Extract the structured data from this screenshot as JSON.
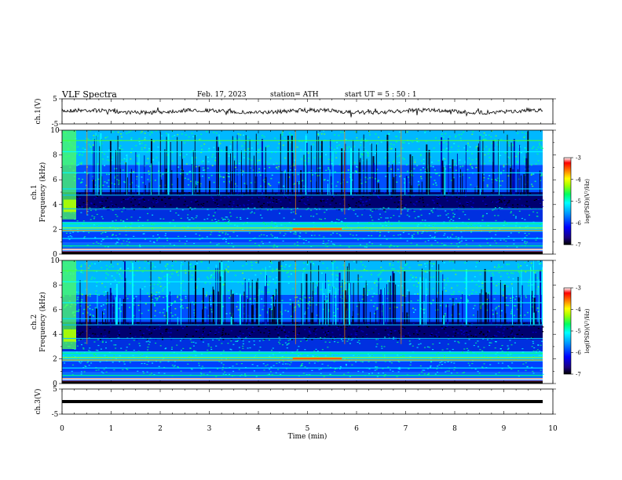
{
  "header": {
    "title": "VLF  Spectra",
    "date": "Feb. 17, 2023",
    "station": "station= ATH",
    "start": "start  UT  =   5  : 50 : 1"
  },
  "colors": {
    "spectrum": [
      "#000000",
      "#0b0b8a",
      "#0000ff",
      "#0088ff",
      "#00ffff",
      "#00ff88",
      "#88ff00",
      "#ffff00",
      "#ff8800",
      "#ff0000",
      "#ffffff"
    ]
  },
  "chart_data": [
    {
      "type": "line",
      "name": "ch1-waveform",
      "ylabel": "ch.1(V)",
      "yticks": [
        "5",
        "-5"
      ],
      "ylim": [
        -5,
        5
      ],
      "xlim": [
        0,
        10
      ]
    },
    {
      "type": "heatmap",
      "name": "ch1-spectrogram",
      "ylabel": "ch.1\nFrequency (kHz)",
      "ylabel_line1": "ch.1",
      "ylabel_line2": "Frequency  (kHz)",
      "yticks": [
        "10",
        "8",
        "6",
        "4",
        "2",
        "0"
      ],
      "ylim": [
        0,
        10
      ],
      "xlim": [
        0,
        10
      ],
      "colorbar": {
        "label": "log(PSD)(V²/Hz)",
        "ticks": [
          "-3",
          "-4",
          "-5",
          "-6",
          "-7"
        ],
        "range": [
          -7,
          -3
        ]
      }
    },
    {
      "type": "heatmap",
      "name": "ch2-spectrogram",
      "ylabel_line1": "ch.2",
      "ylabel_line2": "Frequency  (kHz)",
      "yticks": [
        "10",
        "8",
        "6",
        "4",
        "2",
        "0"
      ],
      "ylim": [
        0,
        10
      ],
      "xlim": [
        0,
        10
      ],
      "colorbar": {
        "label": "log(PSD)(V²/Hz)",
        "ticks": [
          "-3",
          "-4",
          "-5",
          "-6",
          "-7"
        ],
        "range": [
          -7,
          -3
        ]
      }
    },
    {
      "type": "line",
      "name": "ch3-waveform",
      "ylabel": "ch.3(V)",
      "yticks": [
        "5",
        "-5"
      ],
      "ylim": [
        -5,
        5
      ],
      "xlim": [
        0,
        10
      ]
    }
  ],
  "xaxis": {
    "label": "Time  (min)",
    "ticks": [
      "0",
      "1",
      "2",
      "3",
      "4",
      "5",
      "6",
      "7",
      "8",
      "9",
      "10"
    ],
    "range": [
      0,
      10
    ]
  }
}
